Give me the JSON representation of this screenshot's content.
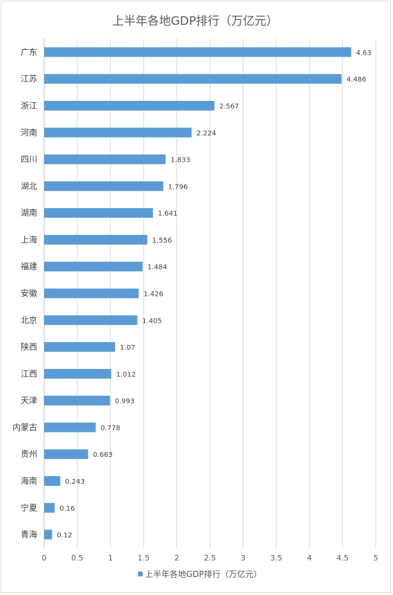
{
  "chart_data": {
    "type": "bar",
    "orientation": "horizontal",
    "title": "上半年各地GDP排行（万亿元）",
    "categories": [
      "广东",
      "江苏",
      "浙江",
      "河南",
      "四川",
      "湖北",
      "湖南",
      "上海",
      "福建",
      "安徽",
      "北京",
      "陕西",
      "江西",
      "天津",
      "内蒙古",
      "贵州",
      "海南",
      "宁夏",
      "青海"
    ],
    "series": [
      {
        "name": "上半年各地GDP排行（万亿元）",
        "values": [
          4.63,
          4.486,
          2.567,
          2.224,
          1.833,
          1.796,
          1.641,
          1.556,
          1.484,
          1.426,
          1.405,
          1.07,
          1.012,
          0.993,
          0.778,
          0.663,
          0.243,
          0.16,
          0.12
        ],
        "labels": [
          "4.63",
          "4.486",
          "2.567",
          "2.224",
          "1.833",
          "1.796",
          "1.641",
          "1.556",
          "1.484",
          "1.426",
          "1.405",
          "1.07",
          "1.012",
          "0.993",
          "0.778",
          "0.663",
          "0.243",
          "0.16",
          "0.12"
        ]
      }
    ],
    "xlim": [
      0,
      5
    ],
    "xticks": [
      0,
      0.5,
      1,
      1.5,
      2,
      2.5,
      3,
      3.5,
      4,
      4.5,
      5
    ],
    "xtick_labels": [
      "0",
      "0.5",
      "1",
      "1.5",
      "2",
      "2.5",
      "3",
      "3.5",
      "4",
      "4.5",
      "5"
    ],
    "grid": true,
    "legend_position": "bottom",
    "bar_color": "#5b9bd5"
  }
}
